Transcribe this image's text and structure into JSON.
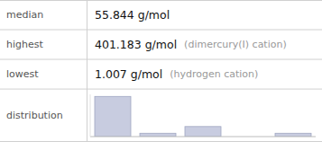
{
  "chart_data": {
    "type": "bar",
    "annotations": [
      {
        "label": "median",
        "text": "55.844 g/mol"
      },
      {
        "label": "highest",
        "text": "401.183 g/mol",
        "note": "(dimercury(I) cation)"
      },
      {
        "label": "lowest",
        "text": "1.007 g/mol",
        "note": "(hydrogen cation)"
      },
      {
        "label": "distribution"
      }
    ],
    "categories": [
      null,
      null,
      null,
      null,
      null
    ],
    "values": [
      12,
      1,
      3,
      0,
      1
    ],
    "color": "#c8cce0",
    "ylim": [
      0,
      12.6
    ],
    "tick_labels": false
  }
}
